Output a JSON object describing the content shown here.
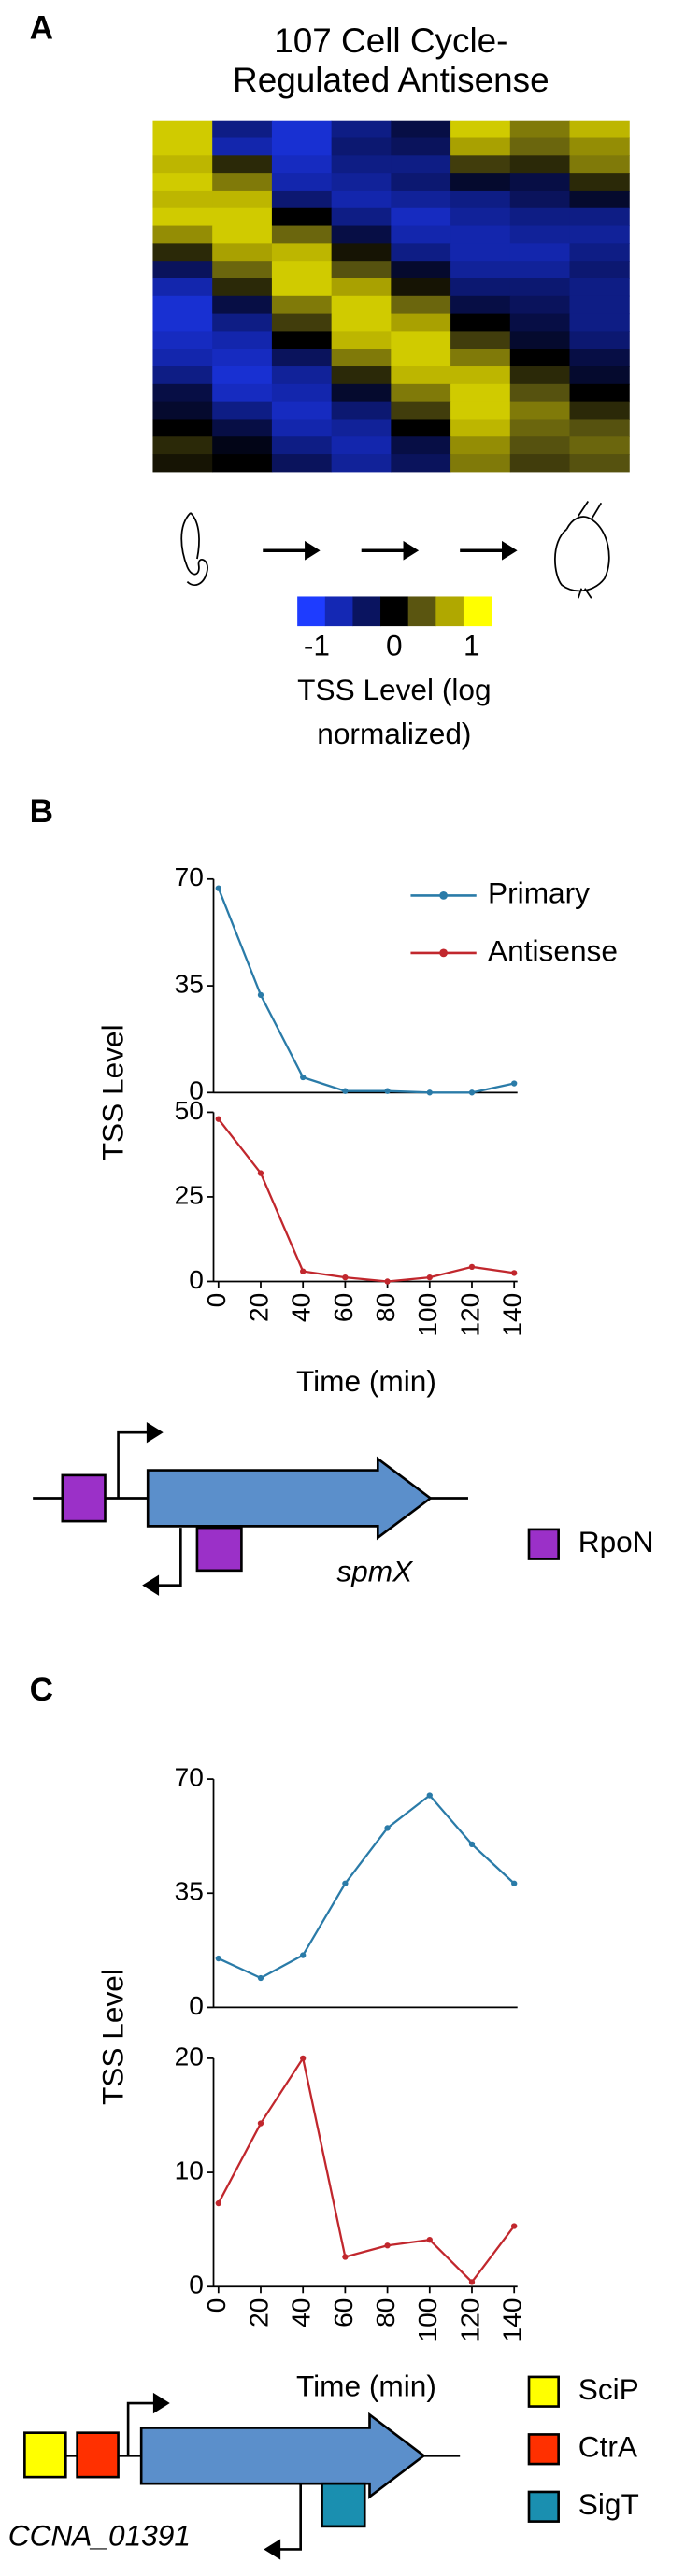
{
  "panel_labels": [
    "A",
    "B",
    "C"
  ],
  "chart_data": [
    {
      "type": "heatmap",
      "title": [
        "107 Cell Cycle-",
        "Regulated Antisense"
      ],
      "values": [
        [
          1,
          -0.6,
          -1,
          -0.6,
          -0.3,
          1,
          0.6,
          0.9
        ],
        [
          1,
          -0.8,
          -1,
          -0.5,
          -0.4,
          0.8,
          0.5,
          0.7
        ],
        [
          0.9,
          0.2,
          -0.9,
          -0.6,
          -0.6,
          0.3,
          0.2,
          0.6
        ],
        [
          1,
          0.6,
          -0.8,
          -0.7,
          -0.5,
          -0.2,
          -0.3,
          0.2
        ],
        [
          0.9,
          0.9,
          -0.5,
          -0.8,
          -0.7,
          -0.6,
          -0.4,
          -0.2
        ],
        [
          1,
          1,
          0,
          -0.6,
          -0.9,
          -0.7,
          -0.6,
          -0.6
        ],
        [
          0.7,
          1,
          0.5,
          -0.3,
          -0.8,
          -0.8,
          -0.7,
          -0.7
        ],
        [
          0.2,
          0.8,
          0.9,
          0.1,
          -0.6,
          -0.8,
          -0.8,
          -0.6
        ],
        [
          -0.4,
          0.5,
          1,
          0.4,
          -0.2,
          -0.7,
          -0.7,
          -0.5
        ],
        [
          -0.8,
          0.2,
          1,
          0.8,
          0.1,
          -0.5,
          -0.5,
          -0.6
        ],
        [
          -1,
          -0.3,
          0.6,
          1,
          0.5,
          -0.3,
          -0.4,
          -0.6
        ],
        [
          -1,
          -0.6,
          0.3,
          1,
          0.8,
          0,
          -0.3,
          -0.6
        ],
        [
          -0.9,
          -0.8,
          0,
          0.9,
          1,
          0.3,
          -0.2,
          -0.5
        ],
        [
          -0.8,
          -0.9,
          -0.4,
          0.6,
          1,
          0.6,
          0,
          -0.3
        ],
        [
          -0.6,
          -1,
          -0.7,
          0.2,
          0.9,
          0.9,
          0.2,
          -0.2
        ],
        [
          -0.3,
          -0.9,
          -0.8,
          -0.2,
          0.6,
          1,
          0.4,
          0
        ],
        [
          -0.2,
          -0.6,
          -0.9,
          -0.5,
          0.3,
          1,
          0.6,
          0.2
        ],
        [
          0,
          -0.3,
          -0.8,
          -0.7,
          0,
          0.9,
          0.5,
          0.4
        ],
        [
          0.2,
          -0.1,
          -0.6,
          -0.8,
          -0.3,
          0.7,
          0.4,
          0.5
        ],
        [
          0.1,
          0,
          -0.4,
          -0.7,
          -0.4,
          0.6,
          0.3,
          0.4
        ]
      ],
      "zlim": [
        -1.25,
        1.25
      ],
      "zticks": [
        -1,
        0,
        1
      ],
      "colors": [
        "#1e3cff",
        "#1428b4",
        "#0a1460",
        "#000000",
        "#5a5510",
        "#b0a800",
        "#ffff00"
      ],
      "colorbar_label": [
        "TSS Level (log",
        "normalized)"
      ]
    },
    {
      "type": "line",
      "x": [
        0,
        20,
        40,
        60,
        80,
        100,
        120,
        140
      ],
      "xlim": [
        0,
        140
      ],
      "ylim": [
        0,
        70
      ],
      "yticks": [
        0,
        35,
        70
      ],
      "legend": true,
      "series": [
        {
          "name": "Primary",
          "color": "#2a7ba8",
          "values": [
            67,
            32,
            5,
            0.5,
            0.5,
            0,
            0,
            3
          ]
        }
      ]
    },
    {
      "type": "line",
      "x": [
        0,
        20,
        40,
        60,
        80,
        100,
        120,
        140
      ],
      "xlim": [
        0,
        140
      ],
      "xticks": [
        0,
        20,
        40,
        60,
        80,
        100,
        120,
        140
      ],
      "xlabel": "Time (min)",
      "ylabel": "TSS Level",
      "ylim": [
        0,
        50
      ],
      "yticks": [
        0,
        25,
        50
      ],
      "legend": true,
      "series": [
        {
          "name": "Antisense",
          "color": "#c1272d",
          "values": [
            48,
            32,
            3,
            1.2,
            0,
            1.2,
            4.3,
            2.5
          ]
        }
      ]
    },
    {
      "type": "line",
      "x": [
        0,
        20,
        40,
        60,
        80,
        100,
        120,
        140
      ],
      "xlim": [
        0,
        140
      ],
      "ylim": [
        0,
        70
      ],
      "yticks": [
        0,
        35,
        70
      ],
      "series": [
        {
          "color": "#2a7ba8",
          "values": [
            15,
            9,
            16,
            38,
            55,
            65,
            50,
            38
          ]
        }
      ]
    },
    {
      "type": "line",
      "x": [
        0,
        20,
        40,
        60,
        80,
        100,
        120,
        140
      ],
      "xlim": [
        0,
        140
      ],
      "xticks": [
        0,
        20,
        40,
        60,
        80,
        100,
        120,
        140
      ],
      "xlabel": "Time (min)",
      "ylabel": "TSS Level",
      "ylim": [
        0,
        20
      ],
      "yticks": [
        0,
        10,
        20
      ],
      "series": [
        {
          "color": "#c1272d",
          "values": [
            7.3,
            14.3,
            20,
            2.6,
            3.6,
            4.1,
            0.4,
            5.3
          ]
        }
      ]
    }
  ],
  "diagrams": [
    {
      "gene": "spmX",
      "legend": [
        "RpoN"
      ]
    },
    {
      "gene": "CCNA_01391",
      "legend": [
        "SciP",
        "CtrA",
        "SigT"
      ]
    }
  ]
}
